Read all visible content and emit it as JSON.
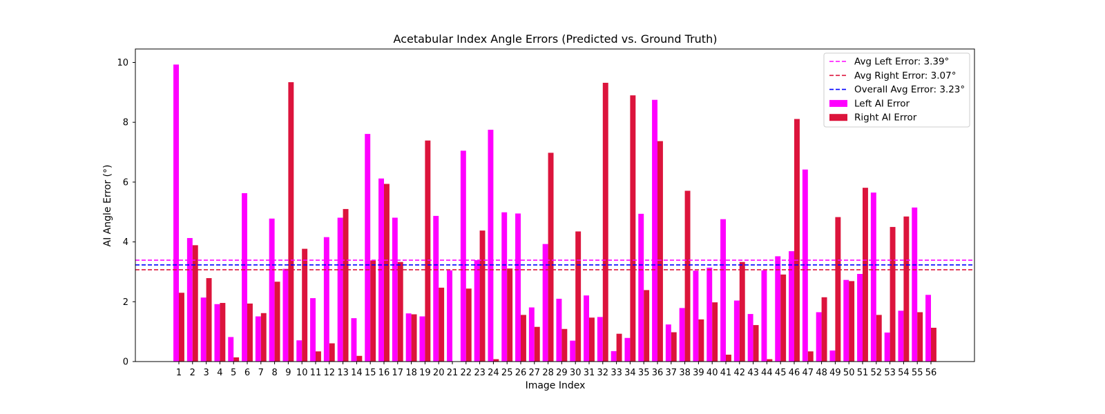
{
  "chart_data": {
    "type": "bar",
    "title": "Acetabular Index Angle Errors (Predicted vs. Ground Truth)",
    "xlabel": "Image Index",
    "ylabel": "AI Angle Error (°)",
    "ylim": [
      0,
      10.45
    ],
    "yticks": [
      0,
      2,
      4,
      6,
      8,
      10
    ],
    "grid": false,
    "legend_position": "upper right",
    "categories": [
      "1",
      "2",
      "3",
      "4",
      "5",
      "6",
      "7",
      "8",
      "9",
      "10",
      "11",
      "12",
      "13",
      "14",
      "15",
      "16",
      "17",
      "18",
      "19",
      "20",
      "21",
      "22",
      "23",
      "24",
      "25",
      "26",
      "27",
      "28",
      "29",
      "30",
      "31",
      "32",
      "33",
      "34",
      "35",
      "36",
      "37",
      "38",
      "39",
      "40",
      "41",
      "42",
      "43",
      "44",
      "45",
      "46",
      "47",
      "48",
      "49",
      "50",
      "51",
      "52",
      "53",
      "54",
      "55",
      "56"
    ],
    "series": [
      {
        "name": "Left AI Error",
        "color": "#ff00ff",
        "values": [
          9.93,
          4.13,
          2.14,
          1.92,
          0.82,
          5.63,
          1.51,
          4.78,
          3.1,
          0.71,
          2.12,
          4.16,
          4.81,
          1.45,
          7.61,
          6.12,
          4.81,
          1.61,
          1.51,
          4.87,
          3.05,
          7.05,
          3.39,
          7.75,
          4.99,
          4.95,
          1.81,
          3.93,
          2.1,
          0.7,
          2.21,
          1.49,
          0.35,
          0.79,
          4.94,
          8.75,
          1.24,
          1.79,
          3.04,
          3.14,
          4.76,
          2.04,
          1.59,
          3.05,
          3.52,
          3.69,
          6.42,
          1.65,
          0.37,
          2.73,
          2.93,
          5.65,
          0.97,
          1.7,
          5.15,
          2.23
        ]
      },
      {
        "name": "Right AI Error",
        "color": "#dc143c",
        "values": [
          2.3,
          3.89,
          2.79,
          1.96,
          0.14,
          1.94,
          1.62,
          2.67,
          9.34,
          3.77,
          0.34,
          0.61,
          5.1,
          0.19,
          3.38,
          5.94,
          3.33,
          1.58,
          7.39,
          2.47,
          0.0,
          2.44,
          4.38,
          0.08,
          3.11,
          1.56,
          1.16,
          6.98,
          1.09,
          4.35,
          1.47,
          9.32,
          0.93,
          8.9,
          2.39,
          7.37,
          0.98,
          5.71,
          1.41,
          1.98,
          0.23,
          3.33,
          1.22,
          0.08,
          2.91,
          8.11,
          0.34,
          2.15,
          4.83,
          2.69,
          5.81,
          1.56,
          4.5,
          4.85,
          1.65,
          1.13
        ]
      }
    ],
    "reference_lines": [
      {
        "name": "Avg Left Error: 3.39°",
        "value": 3.39,
        "color": "#ff00ff",
        "style": "dashed"
      },
      {
        "name": "Avg Right Error: 3.07°",
        "value": 3.07,
        "color": "#dc143c",
        "style": "dashed"
      },
      {
        "name": "Overall Avg Error: 3.23°",
        "value": 3.23,
        "color": "#0000ff",
        "style": "dashed"
      }
    ]
  }
}
